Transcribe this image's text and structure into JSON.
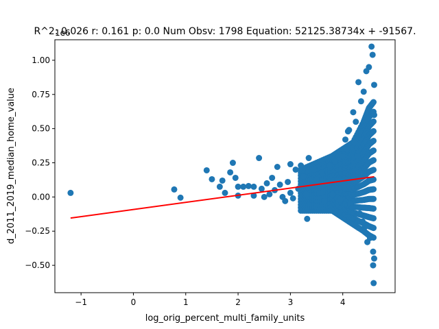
{
  "chart_data": {
    "type": "scatter",
    "title": "R^2: 0.026 r: 0.161 p: 0.0 Num Obsv: 1798 Equation: 52125.38734x + -91567.",
    "xlabel": "log_orig_percent_multi_family_units",
    "ylabel": "d_2011_2019_median_home_value",
    "y_offset_label": "1e6",
    "xlim": [
      -1.5,
      5.0
    ],
    "ylim": [
      -0.7,
      1.15
    ],
    "x_ticks": [
      -1,
      0,
      1,
      2,
      3,
      4
    ],
    "x_tick_labels": [
      "−1",
      "0",
      "1",
      "2",
      "3",
      "4"
    ],
    "y_ticks": [
      -0.5,
      -0.25,
      0.0,
      0.25,
      0.5,
      0.75,
      1.0
    ],
    "y_tick_labels": [
      "−0.50",
      "−0.25",
      "0.00",
      "0.25",
      "0.50",
      "0.75",
      "1.00"
    ],
    "grid": false,
    "colors": {
      "points": "#1f77b4",
      "fit_line": "#ff0000"
    },
    "fit_line": {
      "slope": 52125.38734,
      "intercept": -91567,
      "x_range": [
        -1.2,
        4.6
      ]
    },
    "series": [
      {
        "type": "scatter",
        "points": [
          [
            -1.2,
            0.03
          ],
          [
            0.78,
            0.055
          ],
          [
            0.9,
            -0.005
          ],
          [
            1.4,
            0.195
          ],
          [
            1.5,
            0.13
          ],
          [
            1.65,
            0.075
          ],
          [
            1.7,
            0.12
          ],
          [
            1.75,
            0.03
          ],
          [
            1.85,
            0.18
          ],
          [
            1.9,
            0.25
          ],
          [
            1.95,
            0.14
          ],
          [
            2.0,
            0.075
          ],
          [
            2.0,
            0.01
          ],
          [
            2.1,
            0.075
          ],
          [
            2.2,
            0.08
          ],
          [
            2.3,
            0.075
          ],
          [
            2.3,
            0.01
          ],
          [
            2.4,
            0.285
          ],
          [
            2.45,
            0.06
          ],
          [
            2.5,
            0.0
          ],
          [
            2.55,
            0.1
          ],
          [
            2.6,
            0.02
          ],
          [
            2.65,
            0.14
          ],
          [
            2.7,
            0.05
          ],
          [
            2.75,
            0.22
          ],
          [
            2.8,
            0.09
          ],
          [
            2.85,
            0.0
          ],
          [
            2.9,
            -0.03
          ],
          [
            2.95,
            0.11
          ],
          [
            3.0,
            0.03
          ],
          [
            3.0,
            0.24
          ],
          [
            3.05,
            -0.01
          ],
          [
            3.1,
            0.2
          ],
          [
            3.15,
            0.06
          ],
          [
            3.2,
            0.23
          ],
          [
            3.25,
            0.15
          ],
          [
            3.3,
            0.02
          ],
          [
            3.32,
            -0.16
          ],
          [
            3.35,
            0.285
          ],
          [
            3.4,
            0.08
          ],
          [
            3.45,
            0.2
          ],
          [
            3.5,
            0.13
          ],
          [
            3.55,
            0.03
          ],
          [
            3.6,
            0.18
          ],
          [
            3.65,
            -0.03
          ],
          [
            3.7,
            0.1
          ],
          [
            3.75,
            0.23
          ],
          [
            3.8,
            0.02
          ],
          [
            3.85,
            0.26
          ],
          [
            3.9,
            0.12
          ],
          [
            3.95,
            -0.02
          ],
          [
            4.0,
            0.3
          ],
          [
            4.05,
            0.42
          ],
          [
            4.08,
            0.35
          ],
          [
            4.1,
            0.48
          ],
          [
            4.12,
            0.49
          ],
          [
            4.15,
            -0.05
          ],
          [
            4.18,
            -0.08
          ],
          [
            4.2,
            0.62
          ],
          [
            4.22,
            0.4
          ],
          [
            4.25,
            0.55
          ],
          [
            4.28,
            0.3
          ],
          [
            4.3,
            0.84
          ],
          [
            4.32,
            -0.12
          ],
          [
            4.35,
            0.7
          ],
          [
            4.38,
            -0.18
          ],
          [
            4.4,
            0.77
          ],
          [
            4.42,
            -0.22
          ],
          [
            4.45,
            0.92
          ],
          [
            4.47,
            -0.33
          ],
          [
            4.5,
            0.95
          ],
          [
            4.52,
            -0.3
          ],
          [
            4.55,
            1.1
          ],
          [
            4.57,
            1.04
          ],
          [
            4.58,
            -0.4
          ],
          [
            4.58,
            -0.5
          ],
          [
            4.59,
            -0.63
          ],
          [
            4.6,
            0.82
          ],
          [
            4.6,
            -0.45
          ],
          [
            4.6,
            0.6
          ]
        ],
        "dense_band": [
          {
            "x": 3.2,
            "y_min": -0.1,
            "y_max": 0.2
          },
          {
            "x": 3.5,
            "y_min": -0.1,
            "y_max": 0.25
          },
          {
            "x": 3.8,
            "y_min": -0.1,
            "y_max": 0.3
          },
          {
            "x": 4.0,
            "y_min": -0.15,
            "y_max": 0.35
          },
          {
            "x": 4.2,
            "y_min": -0.2,
            "y_max": 0.4
          },
          {
            "x": 4.4,
            "y_min": -0.25,
            "y_max": 0.55
          },
          {
            "x": 4.5,
            "y_min": -0.28,
            "y_max": 0.65
          },
          {
            "x": 4.6,
            "y_min": -0.3,
            "y_max": 0.7
          }
        ]
      }
    ]
  }
}
